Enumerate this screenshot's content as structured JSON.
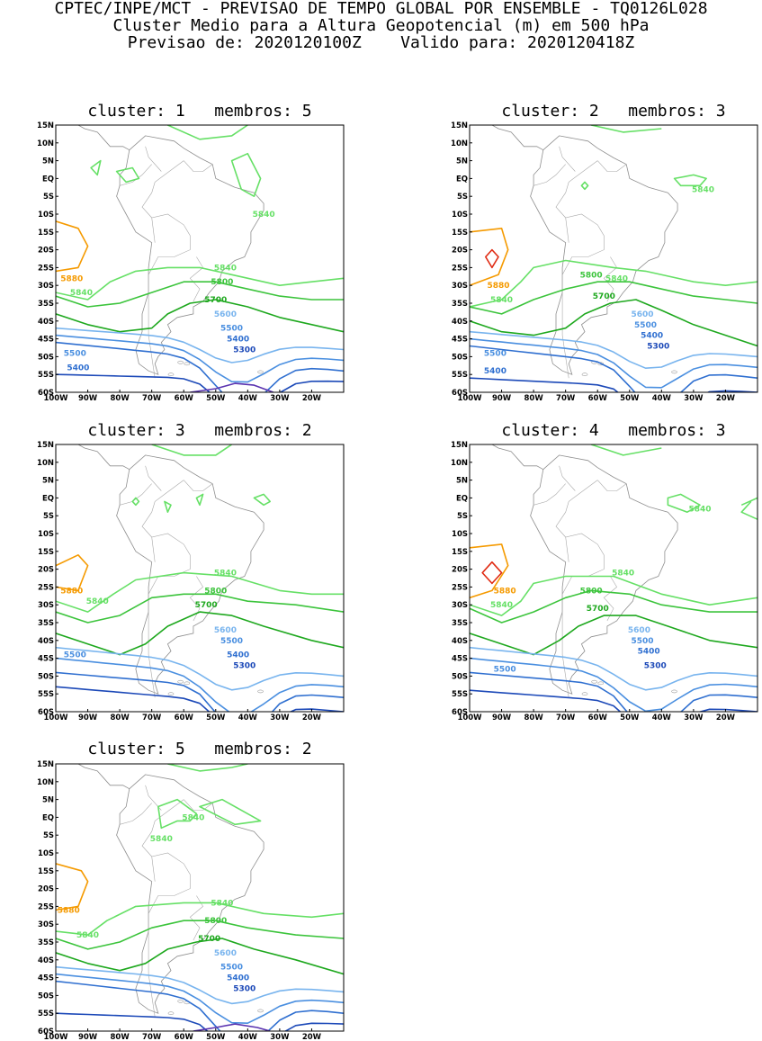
{
  "header": {
    "line1": "CPTEC/INPE/MCT - PREVISAO DE TEMPO GLOBAL POR ENSEMBLE - TQ0126L028",
    "line2": "Cluster Medio para a Altura Geopotencial (m) em 500 hPa",
    "line3": "Previsao de: 2020120100Z    Valido para: 2020120418Z"
  },
  "axes": {
    "lat_ticks": [
      "15N",
      "10N",
      "5N",
      "EQ",
      "5S",
      "10S",
      "15S",
      "20S",
      "25S",
      "30S",
      "35S",
      "40S",
      "45S",
      "50S",
      "55S",
      "60S"
    ],
    "lon_ticks": [
      "100W",
      "90W",
      "80W",
      "70W",
      "60W",
      "50W",
      "40W",
      "30W",
      "20W"
    ]
  },
  "contour_colors": {
    "5880": "#f59a00",
    "5840": "#66e066",
    "5800": "#3cc43c",
    "5700": "#1ea81e",
    "5600": "#78b4ee",
    "5500": "#4a8fe0",
    "5400": "#2f6fd0",
    "5300": "#1c49b8",
    "5200": "#5a33b0",
    "high": "#e02a12"
  },
  "panels": [
    {
      "title": "cluster: 1   membros: 5",
      "labels": [
        {
          "text": "5840",
          "lon": -35,
          "lat": -10,
          "level": "5840"
        },
        {
          "text": "5880",
          "lon": -95,
          "lat": -28,
          "level": "5880"
        },
        {
          "text": "5840",
          "lon": -92,
          "lat": -32,
          "level": "5840"
        },
        {
          "text": "5840",
          "lon": -47,
          "lat": -25,
          "level": "5840"
        },
        {
          "text": "5800",
          "lon": -48,
          "lat": -29,
          "level": "5800"
        },
        {
          "text": "5700",
          "lon": -50,
          "lat": -34,
          "level": "5700"
        },
        {
          "text": "5600",
          "lon": -47,
          "lat": -38,
          "level": "5600"
        },
        {
          "text": "5500",
          "lon": -45,
          "lat": -42,
          "level": "5500"
        },
        {
          "text": "5400",
          "lon": -43,
          "lat": -45,
          "level": "5400"
        },
        {
          "text": "5300",
          "lon": -41,
          "lat": -48,
          "level": "5300"
        },
        {
          "text": "5500",
          "lon": -94,
          "lat": -49,
          "level": "5500"
        },
        {
          "text": "5400",
          "lon": -93,
          "lat": -53,
          "level": "5400"
        }
      ]
    },
    {
      "title": "cluster: 2   membros: 3",
      "labels": [
        {
          "text": "5840",
          "lon": -27,
          "lat": -3,
          "level": "5840"
        },
        {
          "text": "5880",
          "lon": -91,
          "lat": -30,
          "level": "5880"
        },
        {
          "text": "5840",
          "lon": -90,
          "lat": -34,
          "level": "5840"
        },
        {
          "text": "5840",
          "lon": -54,
          "lat": -28,
          "level": "5840"
        },
        {
          "text": "5800",
          "lon": -62,
          "lat": -27,
          "level": "5800"
        },
        {
          "text": "5700",
          "lon": -58,
          "lat": -33,
          "level": "5700"
        },
        {
          "text": "5600",
          "lon": -46,
          "lat": -38,
          "level": "5600"
        },
        {
          "text": "5500",
          "lon": -45,
          "lat": -41,
          "level": "5500"
        },
        {
          "text": "5400",
          "lon": -43,
          "lat": -44,
          "level": "5400"
        },
        {
          "text": "5300",
          "lon": -41,
          "lat": -47,
          "level": "5300"
        },
        {
          "text": "5500",
          "lon": -92,
          "lat": -49,
          "level": "5500"
        },
        {
          "text": "5400",
          "lon": -92,
          "lat": -54,
          "level": "5400"
        }
      ]
    },
    {
      "title": "cluster: 3   membros: 2",
      "labels": [
        {
          "text": "5880",
          "lon": -95,
          "lat": -26,
          "level": "5880"
        },
        {
          "text": "5840",
          "lon": -87,
          "lat": -29,
          "level": "5840"
        },
        {
          "text": "5840",
          "lon": -47,
          "lat": -21,
          "level": "5840"
        },
        {
          "text": "5800",
          "lon": -50,
          "lat": -26,
          "level": "5800"
        },
        {
          "text": "5700",
          "lon": -53,
          "lat": -30,
          "level": "5700"
        },
        {
          "text": "5600",
          "lon": -47,
          "lat": -37,
          "level": "5600"
        },
        {
          "text": "5500",
          "lon": -45,
          "lat": -40,
          "level": "5500"
        },
        {
          "text": "5400",
          "lon": -43,
          "lat": -44,
          "level": "5400"
        },
        {
          "text": "5300",
          "lon": -41,
          "lat": -47,
          "level": "5300"
        },
        {
          "text": "5500",
          "lon": -94,
          "lat": -44,
          "level": "5500"
        }
      ]
    },
    {
      "title": "cluster: 4   membros: 3",
      "labels": [
        {
          "text": "5840",
          "lon": -28,
          "lat": -3,
          "level": "5840"
        },
        {
          "text": "5880",
          "lon": -89,
          "lat": -26,
          "level": "5880"
        },
        {
          "text": "5840",
          "lon": -90,
          "lat": -30,
          "level": "5840"
        },
        {
          "text": "5840",
          "lon": -52,
          "lat": -21,
          "level": "5840"
        },
        {
          "text": "5800",
          "lon": -62,
          "lat": -26,
          "level": "5800"
        },
        {
          "text": "5700",
          "lon": -60,
          "lat": -31,
          "level": "5700"
        },
        {
          "text": "5600",
          "lon": -47,
          "lat": -37,
          "level": "5600"
        },
        {
          "text": "5500",
          "lon": -46,
          "lat": -40,
          "level": "5500"
        },
        {
          "text": "5400",
          "lon": -44,
          "lat": -43,
          "level": "5400"
        },
        {
          "text": "5300",
          "lon": -42,
          "lat": -47,
          "level": "5300"
        },
        {
          "text": "5500",
          "lon": -89,
          "lat": -48,
          "level": "5500"
        }
      ]
    },
    {
      "title": "cluster: 5   membros: 2",
      "labels": [
        {
          "text": "5840",
          "lon": -57,
          "lat": 0,
          "level": "5840"
        },
        {
          "text": "5840",
          "lon": -67,
          "lat": -6,
          "level": "5840"
        },
        {
          "text": "5880",
          "lon": -96,
          "lat": -26,
          "level": "5880"
        },
        {
          "text": "5840",
          "lon": -90,
          "lat": -33,
          "level": "5840"
        },
        {
          "text": "5840",
          "lon": -48,
          "lat": -24,
          "level": "5840"
        },
        {
          "text": "5800",
          "lon": -50,
          "lat": -29,
          "level": "5800"
        },
        {
          "text": "5700",
          "lon": -52,
          "lat": -34,
          "level": "5700"
        },
        {
          "text": "5600",
          "lon": -47,
          "lat": -38,
          "level": "5600"
        },
        {
          "text": "5500",
          "lon": -45,
          "lat": -42,
          "level": "5500"
        },
        {
          "text": "5400",
          "lon": -43,
          "lat": -45,
          "level": "5400"
        },
        {
          "text": "5300",
          "lon": -41,
          "lat": -48,
          "level": "5300"
        }
      ]
    }
  ]
}
